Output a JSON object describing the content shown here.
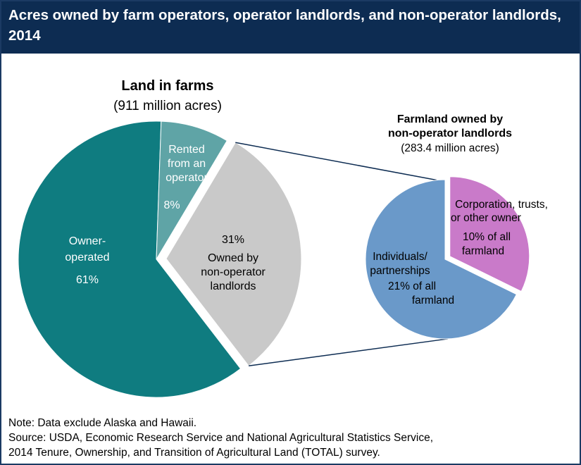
{
  "title": "Acres owned by farm operators, operator landlords, and non-operator landlords, 2014",
  "chart_data": [
    {
      "type": "pie",
      "title": "Land in farms",
      "subtitle": "(911 million acres)",
      "slices": [
        {
          "label": "Owner-operated",
          "value": 61,
          "value_label": "61%",
          "color": "#0f7c80"
        },
        {
          "label": "Rented from an operator",
          "value": 8,
          "value_label": "8%",
          "color": "#5fa4a6"
        },
        {
          "label": "Owned by non-operator landlords",
          "value": 31,
          "value_label": "31%",
          "color": "#c9c9c9"
        }
      ]
    },
    {
      "type": "pie",
      "title": "Farmland owned by non-operator landlords",
      "subtitle": "(283.4 million acres)",
      "slices": [
        {
          "label": "Corporation, trusts, or other owner",
          "value": 10,
          "value_label": "10% of all farmland",
          "color": "#c97ac9"
        },
        {
          "label": "Individuals/ partnerships",
          "value": 21,
          "value_label": "21% of all farmland",
          "color": "#6a99c9"
        }
      ]
    }
  ],
  "labels": {
    "left_title": "Land in farms",
    "left_subtitle": "(911 million acres)",
    "owner_line1": "Owner-",
    "owner_line2": "operated",
    "owner_pct": "61%",
    "rented_line1": "Rented",
    "rented_line2": "from an",
    "rented_line3": "operator",
    "rented_pct": "8%",
    "nonop_pct": "31%",
    "nonop_line1": "Owned by",
    "nonop_line2": "non-operator",
    "nonop_line3": "landlords",
    "right_title_line1": "Farmland owned by",
    "right_title_line2": "non-operator landlords",
    "right_subtitle": "(283.4 million acres)",
    "corp_line1": "Corporation, trusts,",
    "corp_line2": "or other owner",
    "corp_line3": "10% of all",
    "corp_line4": "farmland",
    "indiv_line1": "Individuals/",
    "indiv_line2": "partnerships",
    "indiv_line3": "21% of all",
    "indiv_line4": "farmland"
  },
  "notes": {
    "note": "Note: Data exclude Alaska and Hawaii.",
    "source_line1": "Source: USDA, Economic Research Service and National Agricultural Statistics Service,",
    "source_line2": "2014 Tenure, Ownership, and Transition of Agricultural Land (TOTAL) survey."
  }
}
